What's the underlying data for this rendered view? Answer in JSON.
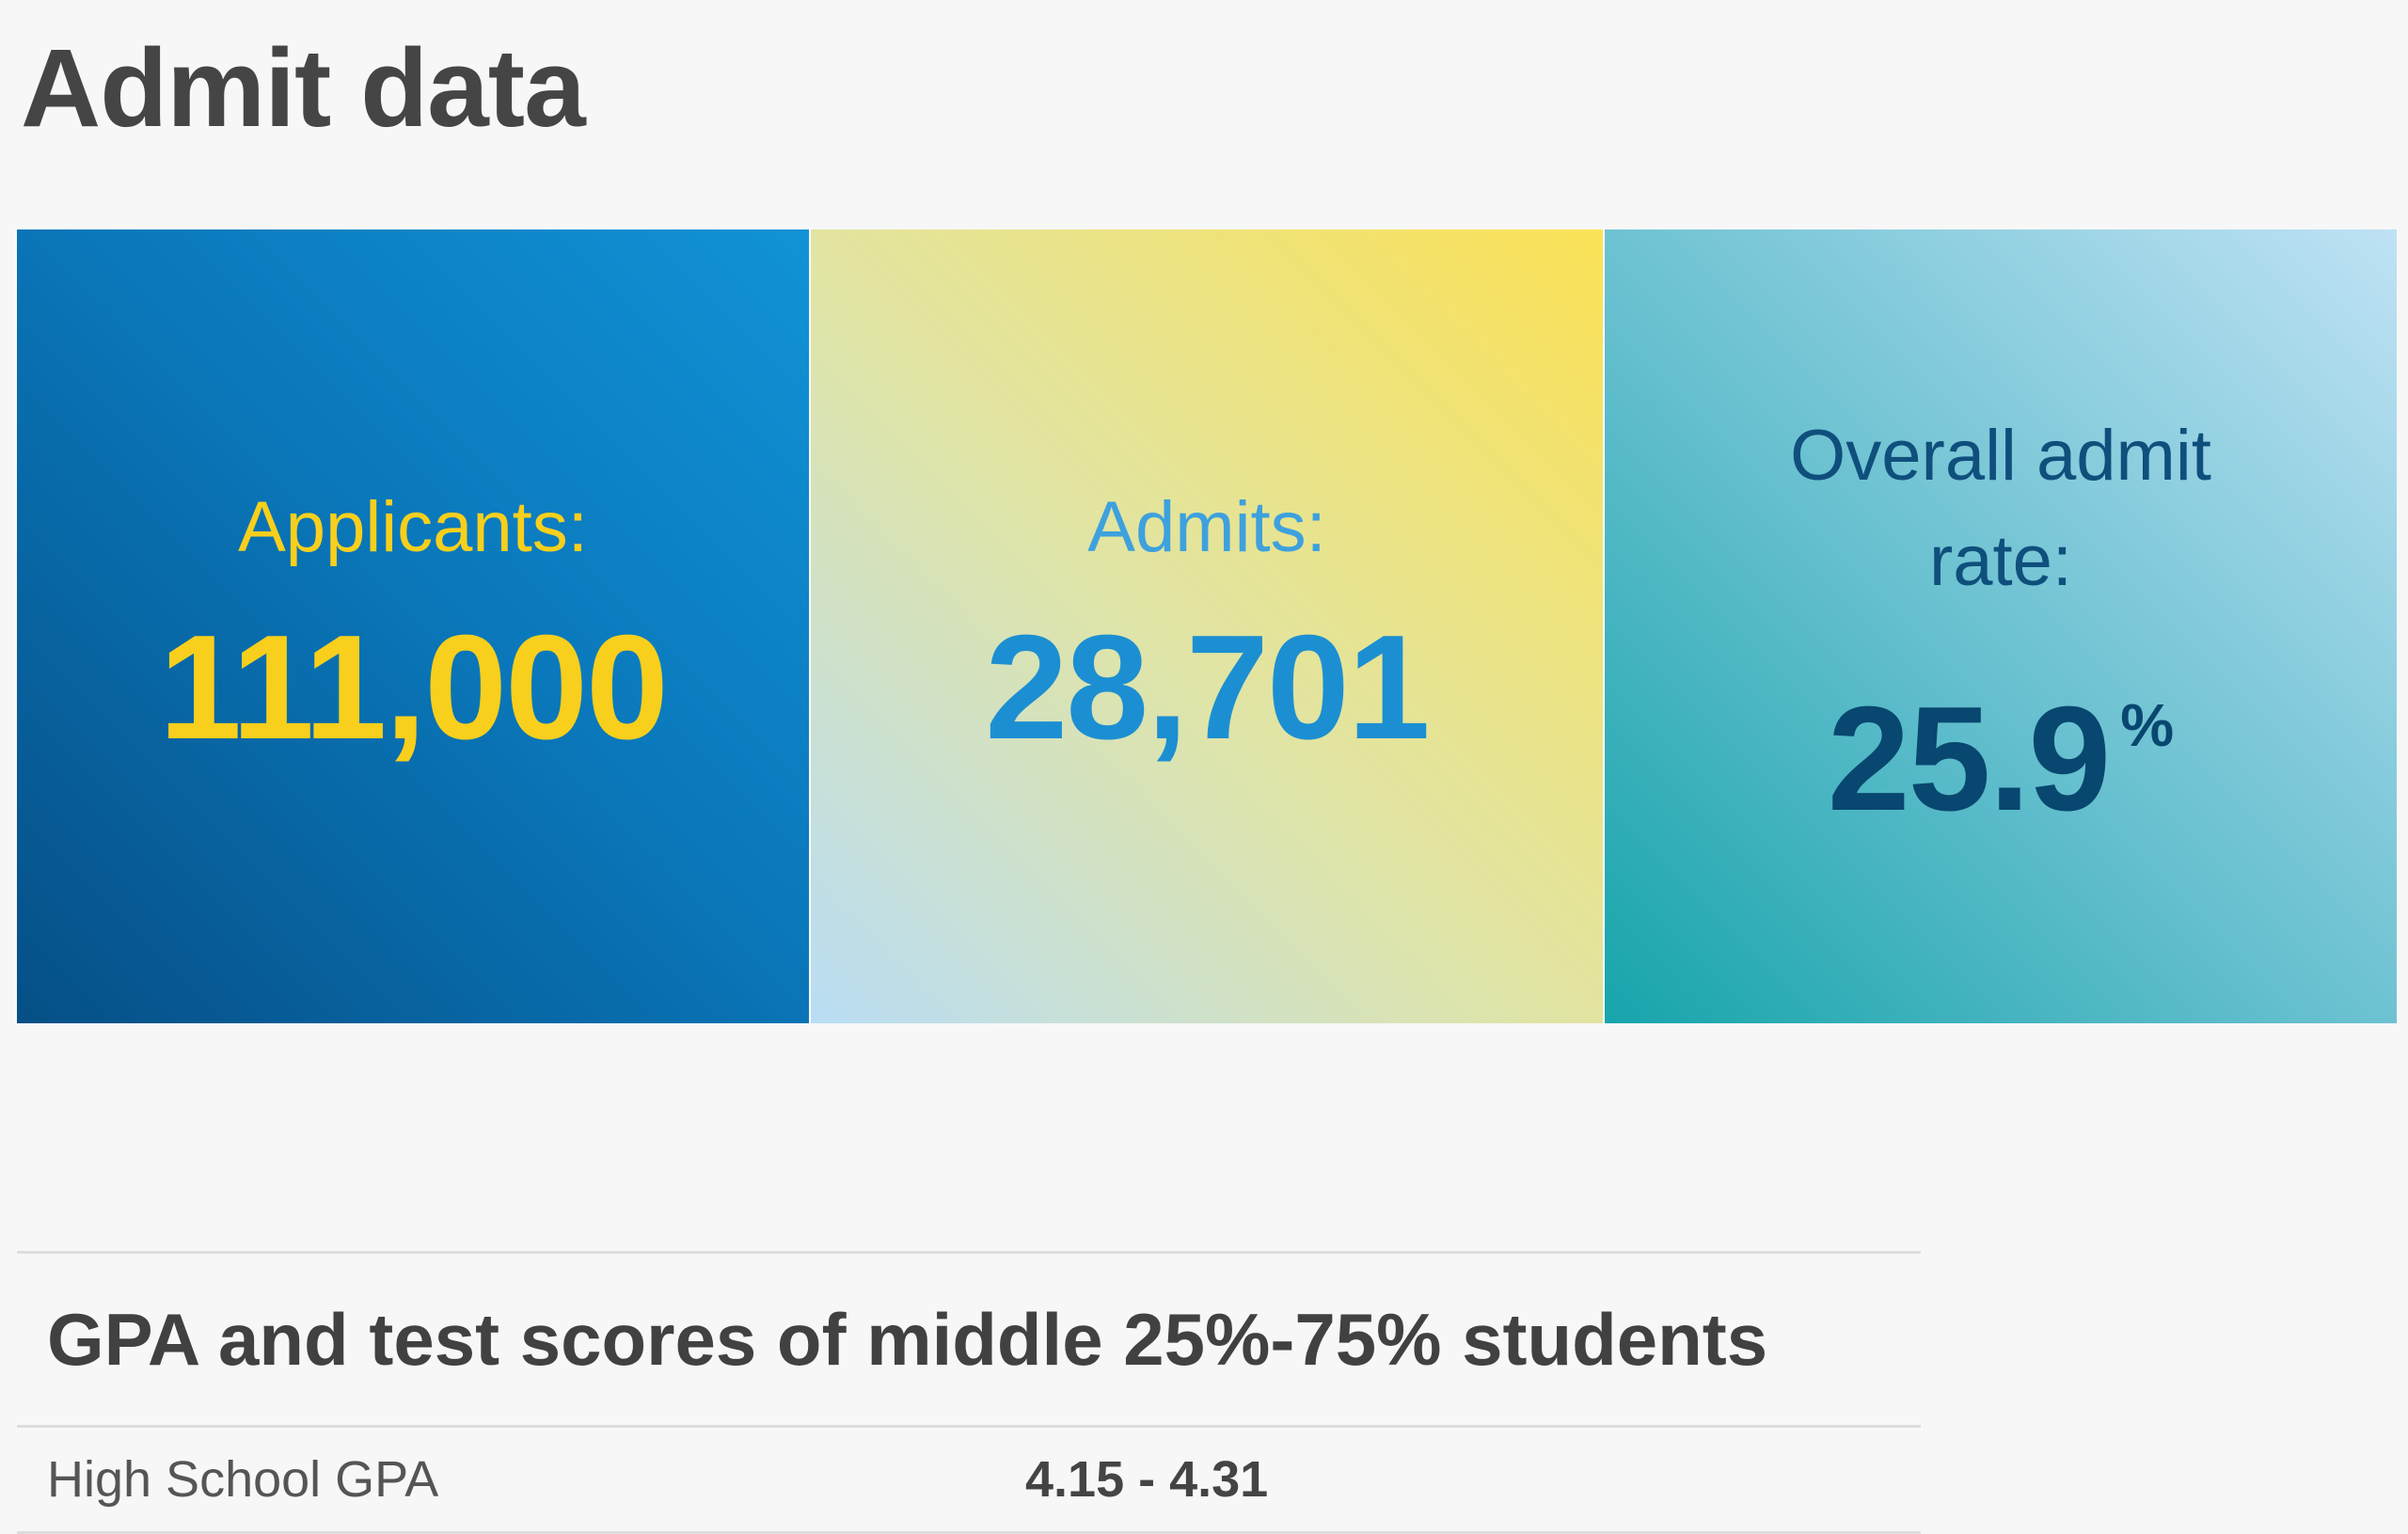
{
  "page": {
    "title": "Admit data"
  },
  "stats": [
    {
      "label": "Applicants:",
      "value": "111,000",
      "unit": ""
    },
    {
      "label": "Admits:",
      "value": "28,701",
      "unit": ""
    },
    {
      "label": "Overall admit rate:",
      "value": "25.9",
      "unit": "%"
    }
  ],
  "colors": {
    "applicants_bg": "#0a78bb",
    "applicants_text": "#f8cf1c",
    "admits_bg": "#fbe256",
    "admits_text": "#1c8fd2",
    "rate_bg": "#5dbccb",
    "rate_text": "#08476f"
  },
  "scores": {
    "heading": "GPA and test scores of middle 25%-75% students",
    "rows": [
      {
        "metric": "High School GPA",
        "range": "4.15 - 4.31"
      }
    ]
  }
}
